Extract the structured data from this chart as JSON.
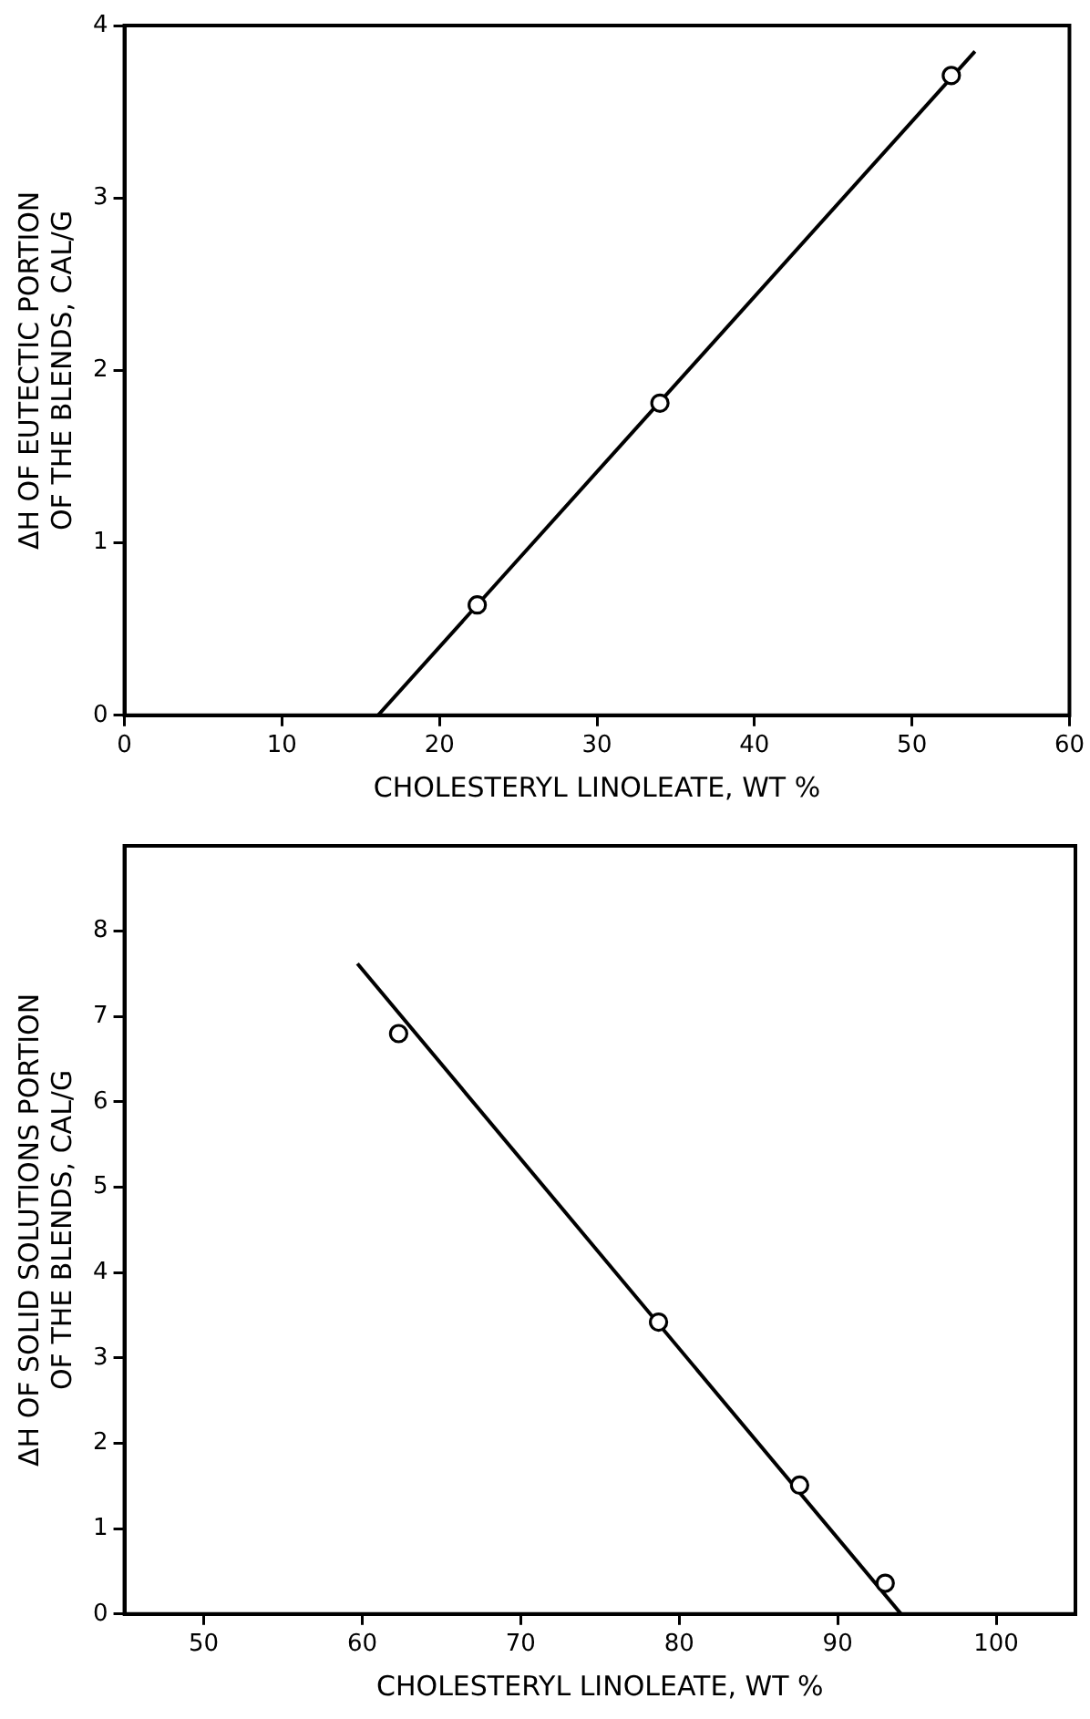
{
  "chart_data": [
    {
      "type": "scatter",
      "xlabel": "CHOLESTERYL LINOLEATE, WT %",
      "ylabel": "ΔH OF EUTECTIC PORTION\nOF THE BLENDS, CAL/G",
      "xlim": [
        0,
        60
      ],
      "xticks": [
        0,
        10,
        20,
        30,
        40,
        50,
        60
      ],
      "ylim": [
        0,
        4
      ],
      "yticks": [
        0,
        1,
        2,
        3,
        4
      ],
      "grid": false,
      "legend": false,
      "marker": "circle",
      "series": [
        {
          "color": "#000000",
          "x": [
            22.4,
            34.0,
            52.5
          ],
          "values": [
            0.64,
            1.81,
            3.71
          ]
        },
        {
          "type": "line",
          "color": "#000000",
          "x": [
            16.1,
            54.0
          ],
          "values": [
            0,
            3.85
          ],
          "marker": "none",
          "line_style": "solid"
        }
      ]
    },
    {
      "type": "scatter",
      "xlabel": "CHOLESTERYL LINOLEATE, WT %",
      "ylabel": "ΔH OF SOLID SOLUTIONS PORTION\nOF THE BLENDS, CAL/G",
      "xlim": [
        45,
        105
      ],
      "xticks": [
        50,
        60,
        70,
        80,
        90,
        100
      ],
      "ylim": [
        0,
        9
      ],
      "yticks": [
        0,
        1,
        2,
        3,
        4,
        5,
        6,
        7,
        8
      ],
      "grid": false,
      "legend": false,
      "marker": "circle",
      "series": [
        {
          "color": "#000000",
          "x": [
            62.3,
            78.7,
            87.6,
            93.0
          ],
          "values": [
            6.8,
            3.42,
            1.51,
            0.36
          ]
        },
        {
          "type": "line",
          "color": "#000000",
          "x": [
            59.7,
            94.0
          ],
          "values": [
            7.62,
            0
          ],
          "marker": "none",
          "line_style": "solid"
        }
      ]
    }
  ]
}
